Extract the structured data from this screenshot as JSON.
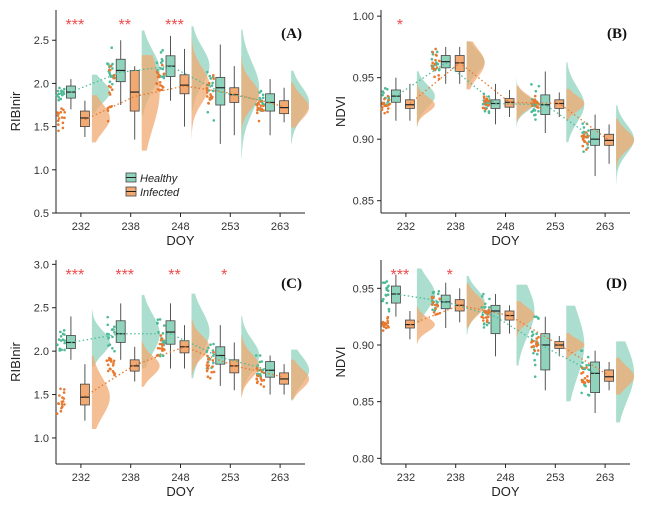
{
  "colors": {
    "healthy": "#4dbb98",
    "healthy_fill": "#8fd3bd",
    "infected": "#e8782e",
    "infected_fill": "#f2aa72",
    "star": "#ee4d4d",
    "axis": "#222222"
  },
  "legend": {
    "healthy_label": "Healthy",
    "infected_label": "Infected"
  },
  "chart_data": [
    {
      "type": "box",
      "panel_label": "(A)",
      "ylabel": "RIBInir",
      "xlabel": "DOY",
      "categories": [
        "232",
        "238",
        "248",
        "253",
        "263"
      ],
      "yticks": [
        0.5,
        1.0,
        1.5,
        2.0,
        2.5
      ],
      "ylim": [
        0.5,
        2.85
      ],
      "significance": [
        "***",
        "**",
        "***",
        "",
        ""
      ],
      "legend_position": "inside-bottom-left",
      "series": [
        {
          "name": "Healthy",
          "q1": [
            1.83,
            2.02,
            2.08,
            1.75,
            1.68
          ],
          "median": [
            1.9,
            2.15,
            2.2,
            1.95,
            1.78
          ],
          "q3": [
            1.97,
            2.28,
            2.32,
            2.07,
            1.88
          ],
          "wlo": [
            1.7,
            1.75,
            1.8,
            1.3,
            1.4
          ],
          "whi": [
            2.05,
            2.5,
            2.55,
            2.45,
            2.05
          ],
          "mean": [
            1.9,
            2.13,
            2.2,
            1.9,
            1.78
          ]
        },
        {
          "name": "Infected",
          "q1": [
            1.5,
            1.68,
            1.88,
            1.78,
            1.65
          ],
          "median": [
            1.6,
            1.9,
            1.98,
            1.87,
            1.72
          ],
          "q3": [
            1.68,
            2.15,
            2.1,
            1.95,
            1.8
          ],
          "wlo": [
            1.38,
            1.35,
            1.5,
            1.4,
            1.55
          ],
          "whi": [
            1.8,
            2.2,
            2.4,
            2.2,
            1.95
          ],
          "mean": [
            1.58,
            1.85,
            1.97,
            1.88,
            1.73
          ]
        }
      ]
    },
    {
      "type": "box",
      "panel_label": "(B)",
      "ylabel": "NDVI",
      "xlabel": "DOY",
      "categories": [
        "232",
        "238",
        "248",
        "253",
        "263"
      ],
      "yticks": [
        0.85,
        0.9,
        0.95,
        1.0
      ],
      "ytick_labels": [
        "0.85",
        "0.90",
        "0.95",
        "1.00"
      ],
      "ylim": [
        0.84,
        1.005
      ],
      "significance": [
        "*",
        "",
        "",
        "",
        ""
      ],
      "series": [
        {
          "name": "Healthy",
          "q1": [
            0.93,
            0.958,
            0.925,
            0.92,
            0.895
          ],
          "median": [
            0.935,
            0.963,
            0.929,
            0.928,
            0.9
          ],
          "q3": [
            0.94,
            0.968,
            0.932,
            0.936,
            0.908
          ],
          "wlo": [
            0.915,
            0.945,
            0.912,
            0.905,
            0.87
          ],
          "whi": [
            0.95,
            0.975,
            0.945,
            0.955,
            0.92
          ],
          "mean": [
            0.935,
            0.962,
            0.929,
            0.928,
            0.9
          ]
        },
        {
          "name": "Infected",
          "q1": [
            0.925,
            0.955,
            0.926,
            0.925,
            0.895
          ],
          "median": [
            0.928,
            0.962,
            0.93,
            0.929,
            0.899
          ],
          "q3": [
            0.932,
            0.968,
            0.933,
            0.932,
            0.904
          ],
          "wlo": [
            0.915,
            0.945,
            0.918,
            0.918,
            0.88
          ],
          "whi": [
            0.945,
            0.975,
            0.94,
            0.938,
            0.912
          ],
          "mean": [
            0.929,
            0.962,
            0.93,
            0.929,
            0.899
          ]
        }
      ]
    },
    {
      "type": "box",
      "panel_label": "(C)",
      "ylabel": "RIBInir",
      "xlabel": "DOY",
      "categories": [
        "232",
        "238",
        "248",
        "253",
        "263"
      ],
      "yticks": [
        1.0,
        1.5,
        2.0,
        2.5,
        3.0
      ],
      "ylim": [
        0.7,
        3.05
      ],
      "significance": [
        "***",
        "***",
        "**",
        "*",
        ""
      ],
      "series": [
        {
          "name": "Healthy",
          "q1": [
            2.03,
            2.1,
            2.08,
            1.85,
            1.7
          ],
          "median": [
            2.1,
            2.2,
            2.22,
            1.95,
            1.78
          ],
          "q3": [
            2.18,
            2.35,
            2.35,
            2.05,
            1.88
          ],
          "wlo": [
            1.9,
            1.9,
            1.8,
            1.6,
            1.5
          ],
          "whi": [
            2.4,
            2.55,
            2.55,
            2.3,
            1.95
          ],
          "mean": [
            2.1,
            2.2,
            2.2,
            1.93,
            1.78
          ]
        },
        {
          "name": "Infected",
          "q1": [
            1.38,
            1.77,
            1.98,
            1.75,
            1.62
          ],
          "median": [
            1.47,
            1.83,
            2.05,
            1.83,
            1.68
          ],
          "q3": [
            1.62,
            1.9,
            2.12,
            1.9,
            1.75
          ],
          "wlo": [
            1.2,
            1.65,
            1.8,
            1.55,
            1.5
          ],
          "whi": [
            1.85,
            2.05,
            2.3,
            2.1,
            1.85
          ],
          "mean": [
            1.48,
            1.84,
            2.05,
            1.83,
            1.7
          ]
        }
      ]
    },
    {
      "type": "box",
      "panel_label": "(D)",
      "ylabel": "NDVI",
      "xlabel": "DOY",
      "categories": [
        "232",
        "238",
        "248",
        "253",
        "263"
      ],
      "yticks": [
        0.8,
        0.85,
        0.9,
        0.95
      ],
      "ytick_labels": [
        "0.80",
        "0.85",
        "0.90",
        "0.95"
      ],
      "ylim": [
        0.795,
        0.975
      ],
      "significance": [
        "***",
        "*",
        "",
        "",
        ""
      ],
      "series": [
        {
          "name": "Healthy",
          "q1": [
            0.937,
            0.932,
            0.91,
            0.878,
            0.858
          ],
          "median": [
            0.945,
            0.938,
            0.93,
            0.9,
            0.875
          ],
          "q3": [
            0.952,
            0.944,
            0.935,
            0.91,
            0.885
          ],
          "wlo": [
            0.925,
            0.915,
            0.89,
            0.86,
            0.84
          ],
          "whi": [
            0.962,
            0.955,
            0.945,
            0.925,
            0.895
          ],
          "mean": [
            0.945,
            0.938,
            0.925,
            0.898,
            0.875
          ]
        },
        {
          "name": "Infected",
          "q1": [
            0.915,
            0.93,
            0.922,
            0.897,
            0.868
          ],
          "median": [
            0.918,
            0.935,
            0.926,
            0.9,
            0.872
          ],
          "q3": [
            0.922,
            0.94,
            0.93,
            0.903,
            0.878
          ],
          "wlo": [
            0.905,
            0.92,
            0.91,
            0.89,
            0.86
          ],
          "whi": [
            0.93,
            0.95,
            0.935,
            0.908,
            0.885
          ],
          "mean": [
            0.918,
            0.935,
            0.926,
            0.9,
            0.873
          ]
        }
      ]
    }
  ]
}
